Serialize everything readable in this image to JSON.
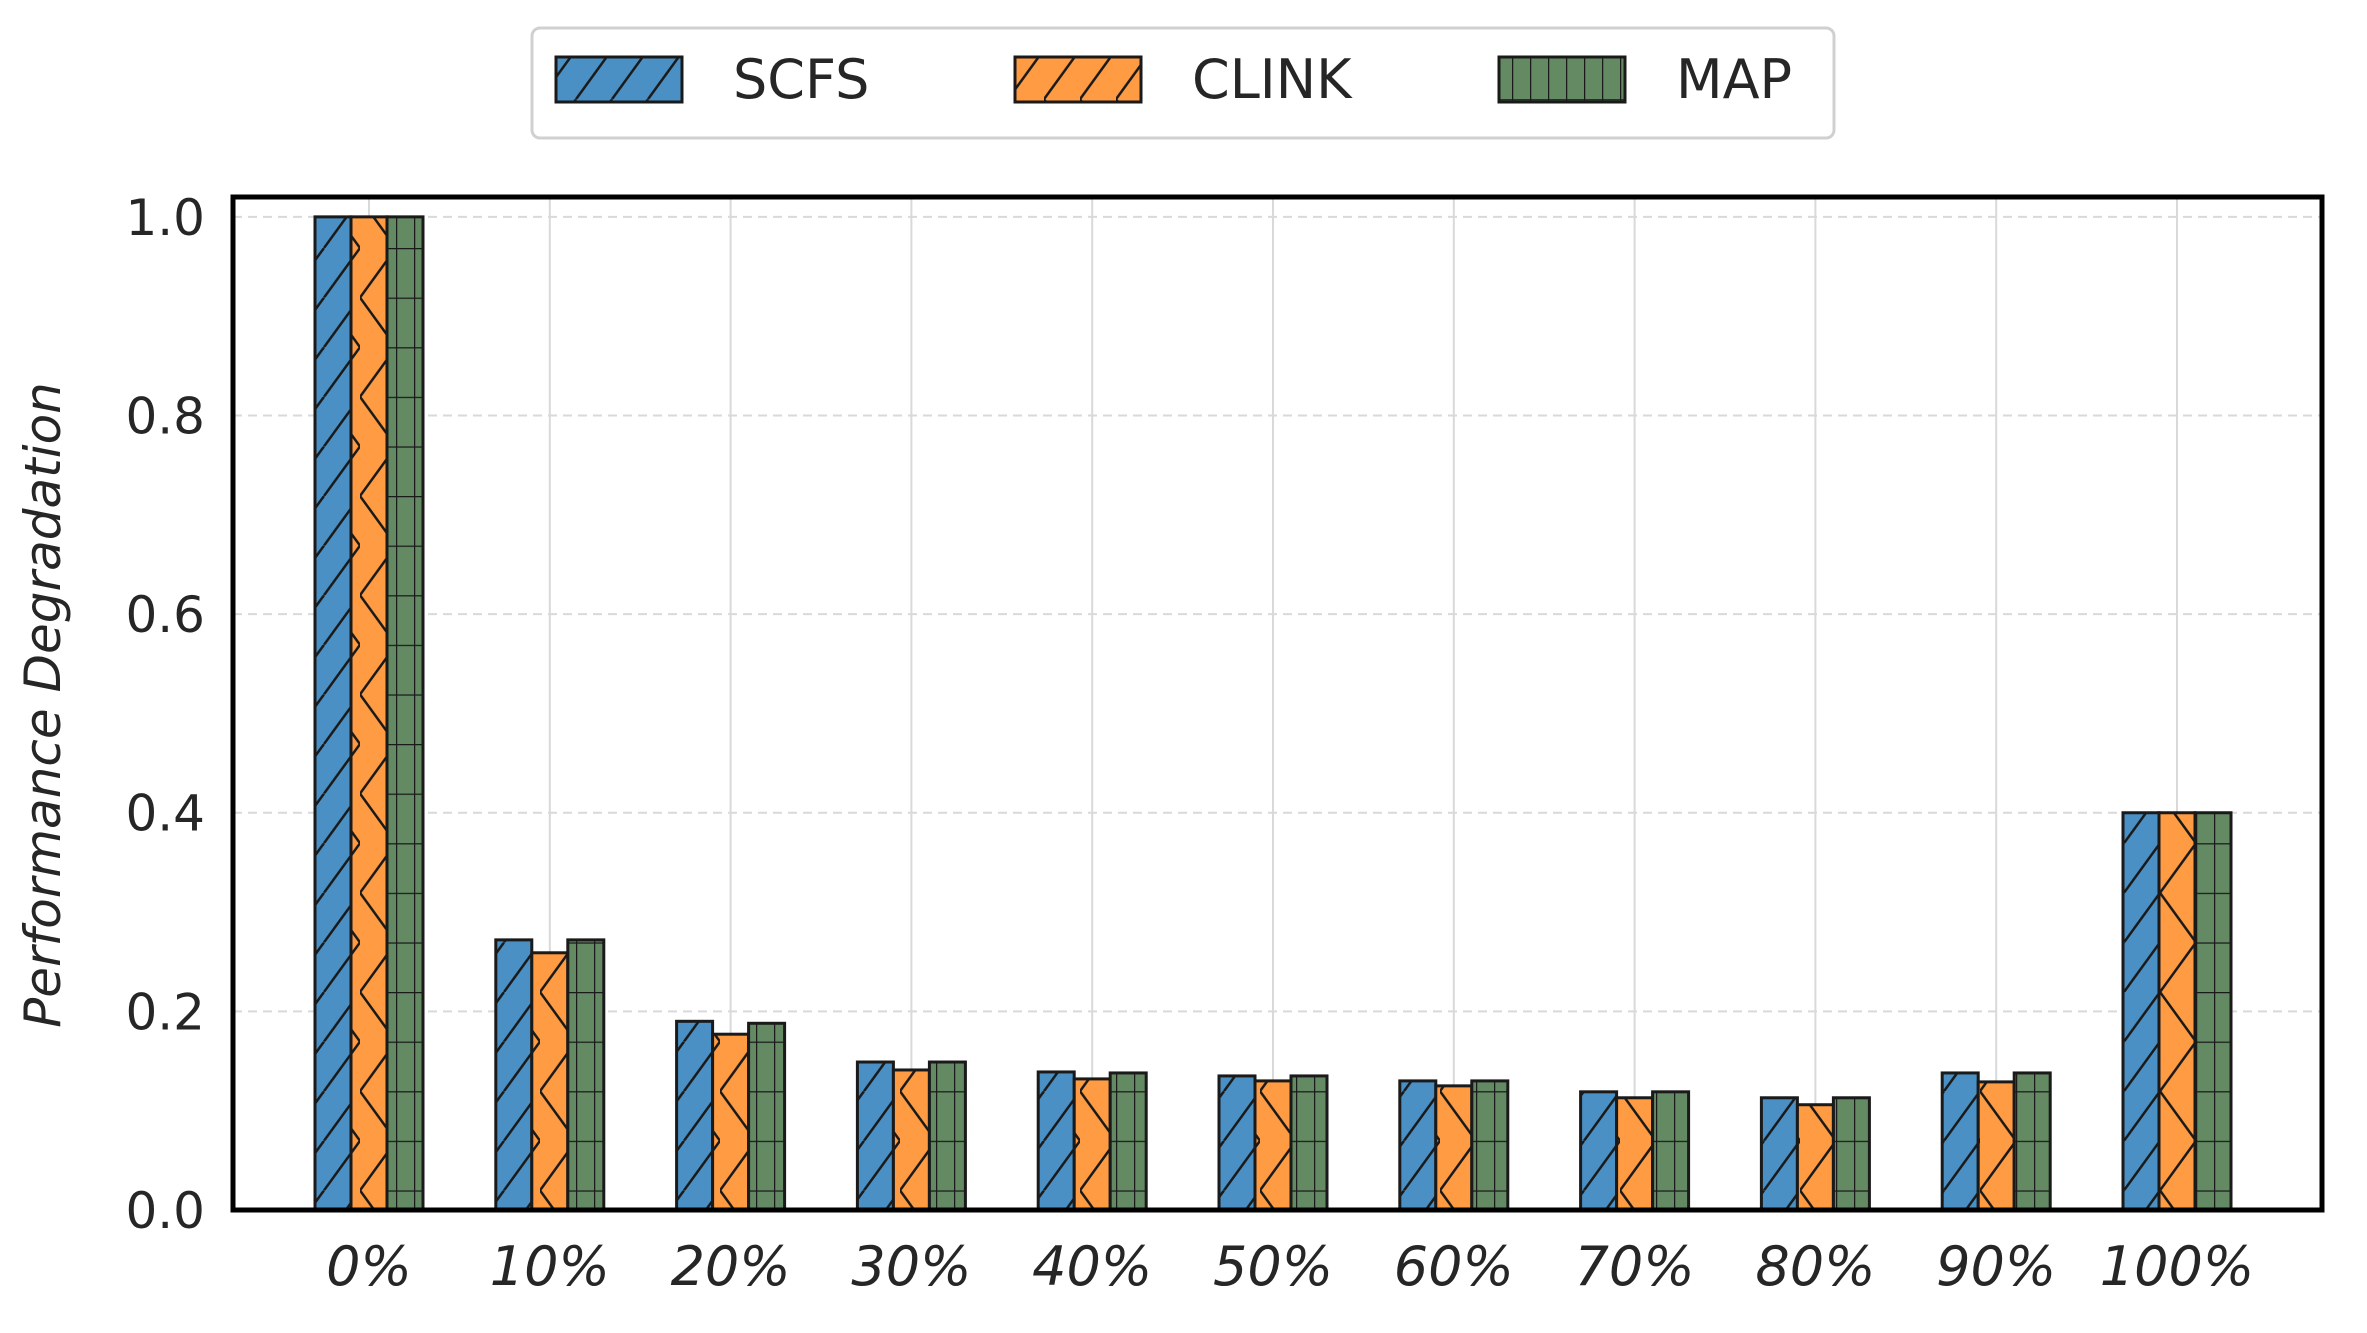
{
  "chart_data": {
    "type": "bar",
    "title": "",
    "xlabel": "",
    "ylabel": "Performance Degradation",
    "ylim": [
      0,
      1.02
    ],
    "yticks": [
      "0.0",
      "0.2",
      "0.4",
      "0.6",
      "0.8",
      "1.0"
    ],
    "categories": [
      "0%",
      "10%",
      "20%",
      "30%",
      "40%",
      "50%",
      "60%",
      "70%",
      "80%",
      "90%",
      "100%"
    ],
    "series": [
      {
        "name": "SCFS",
        "color": "#4a90c4",
        "hatch": "diagonal",
        "values": [
          1.0,
          0.272,
          0.19,
          0.149,
          0.139,
          0.135,
          0.13,
          0.119,
          0.113,
          0.138,
          0.4
        ]
      },
      {
        "name": "CLINK",
        "color": "#fe9b43",
        "hatch": "cross",
        "values": [
          1.0,
          0.259,
          0.177,
          0.141,
          0.132,
          0.13,
          0.125,
          0.113,
          0.106,
          0.129,
          0.4
        ]
      },
      {
        "name": "MAP",
        "color": "#638a63",
        "hatch": "grid",
        "values": [
          1.0,
          0.272,
          0.188,
          0.149,
          0.138,
          0.135,
          0.13,
          0.119,
          0.113,
          0.138,
          0.4
        ]
      }
    ],
    "grid": true,
    "legend_position": "top-center"
  }
}
